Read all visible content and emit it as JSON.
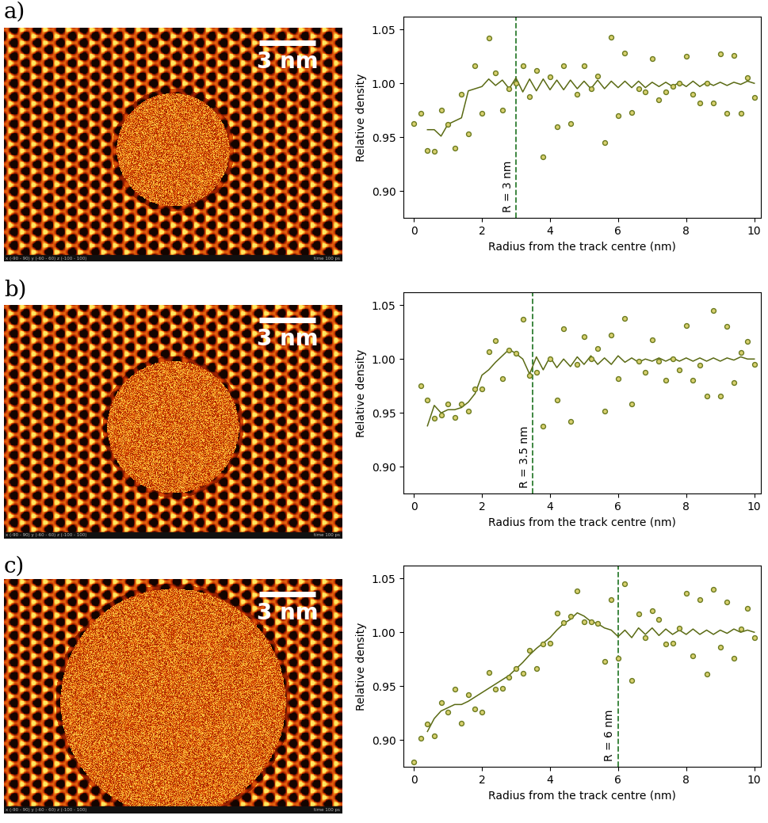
{
  "images": [
    {
      "label": "a)",
      "scale_bar": {
        "value": 3,
        "label": "3 nm"
      },
      "footer_left": "x (-90 - 90) y (-60 - 60) z (-100 - 100)",
      "footer_right": "time 100 ps"
    },
    {
      "label": "b)",
      "scale_bar": {
        "value": 3,
        "label": "3 nm"
      },
      "footer_left": "x (-90 - 90) y (-60 - 60) z (-100 - 100)",
      "footer_right": "time 100 ps"
    },
    {
      "label": "c)",
      "scale_bar": {
        "value": 3,
        "label": "3 nm"
      },
      "footer_left": "x (-90 - 90) y (-60 - 60) z (-100 - 100)",
      "footer_right": "time 100 ps"
    }
  ],
  "chart_data": [
    {
      "type": "scatter",
      "x_label": "Radius from the track centre (nm)",
      "y_label": "Relative density",
      "xlim": [
        -0.3,
        10.2
      ],
      "ylim": [
        0.875,
        1.062
      ],
      "xticks": [
        0,
        2,
        4,
        6,
        8,
        10
      ],
      "yticks": [
        {
          "value": 0.9,
          "label": "0.90"
        },
        {
          "value": 0.95,
          "label": "0.95"
        },
        {
          "value": 1.0,
          "label": "1.00"
        },
        {
          "value": 1.05,
          "label": "1.05"
        }
      ],
      "series": [
        {
          "type": "scatter",
          "marker": "o",
          "color": "#6b7a1f",
          "x": [
            0,
            0.2,
            0.4,
            0.6,
            0.8,
            1.0,
            1.2,
            1.4,
            1.6,
            1.8,
            2.0,
            2.2,
            2.4,
            2.6,
            2.8,
            3.0,
            3.2,
            3.4,
            3.6,
            3.8,
            4.0,
            4.2,
            4.4,
            4.6,
            4.8,
            5.0,
            5.2,
            5.4,
            5.6,
            5.8,
            6.0,
            6.2,
            6.4,
            6.6,
            6.8,
            7.0,
            7.2,
            7.4,
            7.6,
            7.8,
            8.0,
            8.2,
            8.4,
            8.6,
            8.8,
            9.0,
            9.2,
            9.4,
            9.6,
            9.8,
            10.0
          ],
          "values": [
            0.963,
            0.972,
            0.938,
            0.937,
            0.975,
            0.962,
            0.94,
            0.99,
            0.953,
            1.016,
            0.972,
            1.042,
            1.01,
            0.975,
            0.995,
            1.0,
            1.016,
            0.988,
            1.012,
            0.932,
            1.006,
            0.96,
            1.016,
            0.963,
            0.99,
            1.016,
            0.995,
            1.007,
            0.945,
            1.043,
            0.97,
            1.028,
            0.973,
            0.995,
            0.992,
            1.023,
            0.985,
            0.992,
            0.997,
            1.0,
            1.025,
            0.99,
            0.982,
            1.0,
            0.982,
            1.027,
            0.972,
            1.026,
            0.972,
            1.005,
            0.987
          ]
        },
        {
          "type": "line",
          "line_style": "solid",
          "color": "#5a6a14",
          "x": [
            0.4,
            0.6,
            0.8,
            1.0,
            1.2,
            1.4,
            1.6,
            1.8,
            2.0,
            2.2,
            2.4,
            2.6,
            2.8,
            3.0,
            3.2,
            3.4,
            3.6,
            3.8,
            4.0,
            4.2,
            4.4,
            4.6,
            4.8,
            5.0,
            5.2,
            5.4,
            5.6,
            5.8,
            6.0,
            6.2,
            6.4,
            6.6,
            6.8,
            7.0,
            7.2,
            7.4,
            7.6,
            7.8,
            8.0,
            8.2,
            8.4,
            8.6,
            8.8,
            9.0,
            9.2,
            9.4,
            9.6,
            9.8,
            10.0
          ],
          "values": [
            0.957,
            0.957,
            0.951,
            0.962,
            0.965,
            0.968,
            0.993,
            0.995,
            0.997,
            1.004,
            0.998,
            1.003,
            0.995,
            1.005,
            0.992,
            1.004,
            0.993,
            1.004,
            0.994,
            1.003,
            0.994,
            1.003,
            0.995,
            1.002,
            0.995,
            1.003,
            0.995,
            1.002,
            0.996,
            1.002,
            0.996,
            1.002,
            0.996,
            1.001,
            0.997,
            1.001,
            0.997,
            1.001,
            0.997,
            1.002,
            0.997,
            1.001,
            0.998,
            1.001,
            0.998,
            1.001,
            0.999,
            1.002,
            1.0
          ]
        }
      ],
      "annotations": [
        {
          "text": "R = 3 nm",
          "x": 3,
          "line_style": "dashed",
          "color": "#2e7d32"
        }
      ]
    },
    {
      "type": "scatter",
      "x_label": "Radius from the track centre (nm)",
      "y_label": "Relative density",
      "xlim": [
        -0.3,
        10.2
      ],
      "ylim": [
        0.875,
        1.062
      ],
      "xticks": [
        0,
        2,
        4,
        6,
        8,
        10
      ],
      "yticks": [
        {
          "value": 0.9,
          "label": "0.90"
        },
        {
          "value": 0.95,
          "label": "0.95"
        },
        {
          "value": 1.0,
          "label": "1.00"
        },
        {
          "value": 1.05,
          "label": "1.05"
        }
      ],
      "series": [
        {
          "type": "scatter",
          "marker": "o",
          "color": "#6b7a1f",
          "x": [
            0.2,
            0.4,
            0.6,
            0.8,
            1.0,
            1.2,
            1.4,
            1.6,
            1.8,
            2.0,
            2.2,
            2.4,
            2.6,
            2.8,
            3.0,
            3.2,
            3.4,
            3.6,
            3.8,
            4.0,
            4.2,
            4.4,
            4.6,
            4.8,
            5.0,
            5.2,
            5.4,
            5.6,
            5.8,
            6.0,
            6.2,
            6.4,
            6.6,
            6.8,
            7.0,
            7.2,
            7.4,
            7.6,
            7.8,
            8.0,
            8.2,
            8.4,
            8.6,
            8.8,
            9.0,
            9.2,
            9.4,
            9.6,
            9.8,
            10.0
          ],
          "values": [
            0.975,
            0.962,
            0.945,
            0.948,
            0.958,
            0.946,
            0.958,
            0.952,
            0.972,
            0.972,
            1.007,
            1.017,
            0.982,
            1.008,
            1.005,
            1.037,
            0.985,
            0.988,
            0.938,
            1.0,
            0.962,
            1.028,
            0.942,
            0.995,
            1.021,
            1.0,
            1.01,
            0.952,
            1.022,
            0.982,
            1.038,
            0.958,
            0.998,
            0.988,
            1.018,
            0.998,
            0.98,
            1.0,
            0.99,
            1.031,
            0.98,
            0.994,
            0.966,
            1.045,
            0.966,
            1.03,
            0.978,
            1.006,
            1.016,
            0.995
          ]
        },
        {
          "type": "line",
          "line_style": "solid",
          "color": "#5a6a14",
          "x": [
            0.4,
            0.6,
            0.8,
            1.0,
            1.2,
            1.4,
            1.6,
            1.8,
            2.0,
            2.2,
            2.4,
            2.6,
            2.8,
            3.0,
            3.2,
            3.4,
            3.6,
            3.8,
            4.0,
            4.2,
            4.4,
            4.6,
            4.8,
            5.0,
            5.2,
            5.4,
            5.6,
            5.8,
            6.0,
            6.2,
            6.4,
            6.6,
            6.8,
            7.0,
            7.2,
            7.4,
            7.6,
            7.8,
            8.0,
            8.2,
            8.4,
            8.6,
            8.8,
            9.0,
            9.2,
            9.4,
            9.6,
            9.8,
            10.0
          ],
          "values": [
            0.938,
            0.957,
            0.95,
            0.953,
            0.953,
            0.955,
            0.96,
            0.968,
            0.985,
            0.99,
            0.997,
            1.003,
            1.009,
            1.005,
            1.0,
            0.986,
            1.002,
            0.99,
            1.002,
            0.992,
            1.0,
            0.993,
            1.002,
            0.995,
            1.003,
            0.995,
            1.001,
            0.995,
            1.003,
            0.997,
            1.001,
            0.997,
            1.0,
            0.998,
            1.001,
            0.998,
            1.001,
            0.998,
            1.001,
            0.998,
            1.001,
            0.998,
            1.001,
            0.998,
            1.001,
            0.999,
            1.002,
            1.0,
            1.0
          ]
        }
      ],
      "annotations": [
        {
          "text": "R = 3.5 nm",
          "x": 3.5,
          "line_style": "dashed",
          "color": "#2e7d32"
        }
      ]
    },
    {
      "type": "scatter",
      "x_label": "Radius from the track centre (nm)",
      "y_label": "Relative density",
      "xlim": [
        -0.3,
        10.2
      ],
      "ylim": [
        0.875,
        1.062
      ],
      "xticks": [
        0,
        2,
        4,
        6,
        8,
        10
      ],
      "yticks": [
        {
          "value": 0.9,
          "label": "0.90"
        },
        {
          "value": 0.95,
          "label": "0.95"
        },
        {
          "value": 1.0,
          "label": "1.00"
        },
        {
          "value": 1.05,
          "label": "1.05"
        }
      ],
      "series": [
        {
          "type": "scatter",
          "marker": "o",
          "color": "#6b7a1f",
          "x": [
            0,
            0.2,
            0.4,
            0.6,
            0.8,
            1.0,
            1.2,
            1.4,
            1.6,
            1.8,
            2.0,
            2.2,
            2.4,
            2.6,
            2.8,
            3.0,
            3.2,
            3.4,
            3.6,
            3.8,
            4.0,
            4.2,
            4.4,
            4.6,
            4.8,
            5.0,
            5.2,
            5.4,
            5.6,
            5.8,
            6.0,
            6.2,
            6.4,
            6.6,
            6.8,
            7.0,
            7.2,
            7.4,
            7.6,
            7.8,
            8.0,
            8.2,
            8.4,
            8.6,
            8.8,
            9.0,
            9.2,
            9.4,
            9.6,
            9.8,
            10.0
          ],
          "values": [
            0.88,
            0.902,
            0.915,
            0.904,
            0.935,
            0.926,
            0.947,
            0.916,
            0.942,
            0.929,
            0.926,
            0.963,
            0.947,
            0.948,
            0.958,
            0.966,
            0.962,
            0.983,
            0.966,
            0.989,
            0.99,
            1.018,
            1.009,
            1.015,
            1.038,
            1.01,
            1.01,
            1.008,
            0.973,
            1.03,
            0.976,
            1.045,
            0.955,
            1.017,
            0.995,
            1.02,
            1.012,
            0.989,
            0.99,
            1.004,
            1.036,
            0.978,
            1.03,
            0.961,
            1.04,
            0.986,
            1.028,
            0.976,
            1.003,
            1.022,
            0.995
          ]
        },
        {
          "type": "line",
          "line_style": "solid",
          "color": "#5a6a14",
          "x": [
            0.4,
            0.6,
            0.8,
            1.0,
            1.2,
            1.4,
            1.6,
            1.8,
            2.0,
            2.2,
            2.4,
            2.6,
            2.8,
            3.0,
            3.2,
            3.4,
            3.6,
            3.8,
            4.0,
            4.2,
            4.4,
            4.6,
            4.8,
            5.0,
            5.2,
            5.4,
            5.6,
            5.8,
            6.0,
            6.2,
            6.4,
            6.6,
            6.8,
            7.0,
            7.2,
            7.4,
            7.6,
            7.8,
            8.0,
            8.2,
            8.4,
            8.6,
            8.8,
            9.0,
            9.2,
            9.4,
            9.6,
            9.8,
            10.0
          ],
          "values": [
            0.908,
            0.92,
            0.927,
            0.93,
            0.933,
            0.933,
            0.936,
            0.94,
            0.944,
            0.948,
            0.952,
            0.956,
            0.96,
            0.966,
            0.972,
            0.979,
            0.985,
            0.99,
            0.995,
            1.002,
            1.008,
            1.012,
            1.018,
            1.015,
            1.01,
            1.008,
            1.004,
            1.002,
            0.996,
            1.002,
            0.995,
            1.004,
            0.998,
            1.004,
            0.997,
            1.003,
            0.998,
            1.002,
            0.998,
            1.003,
            0.998,
            1.002,
            0.998,
            1.002,
            0.999,
            1.003,
            1.0,
            1.002,
            1.0
          ]
        }
      ],
      "annotations": [
        {
          "text": "R = 6 nm",
          "x": 6,
          "line_style": "dashed",
          "color": "#2e7d32"
        }
      ]
    }
  ]
}
